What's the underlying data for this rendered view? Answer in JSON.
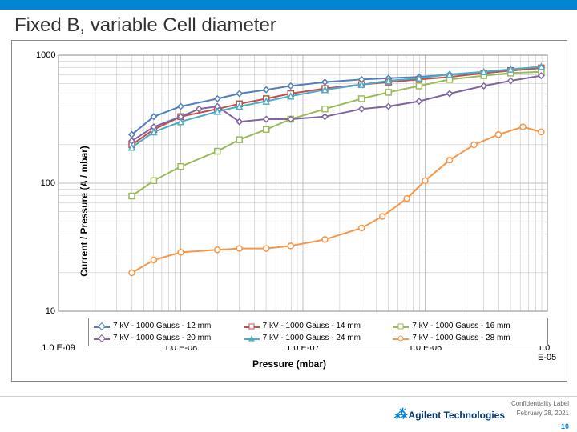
{
  "title": "Fixed B, variable Cell diameter",
  "chart": {
    "type": "line-scatter-loglog",
    "x_axis": {
      "label": "Pressure (mbar)",
      "min_exp": -9,
      "max_exp": -5,
      "ticks": [
        "1.0 E-09",
        "1.0 E-08",
        "1.0 E-07",
        "1.0 E-06",
        "1.0 E-05"
      ]
    },
    "y_axis": {
      "label": "Current / Pressure (A / mbar)",
      "min_exp": 1,
      "max_exp": 3,
      "ticks": [
        "10",
        "100",
        "1000"
      ]
    },
    "grid_color": "#bfbfbf",
    "plot_bg": "#ffffff",
    "series": [
      {
        "name": "7 kV - 1000 Gauss - 12 mm",
        "color": "#4f81bd",
        "marker": "diamond",
        "data": [
          [
            -8.4,
            2.38
          ],
          [
            -8.22,
            2.52
          ],
          [
            -8.0,
            2.6
          ],
          [
            -7.7,
            2.66
          ],
          [
            -7.52,
            2.7
          ],
          [
            -7.3,
            2.73
          ],
          [
            -7.1,
            2.76
          ],
          [
            -6.82,
            2.79
          ],
          [
            -6.52,
            2.81
          ],
          [
            -6.3,
            2.82
          ],
          [
            -6.05,
            2.83
          ],
          [
            -5.8,
            2.85
          ],
          [
            -5.52,
            2.86
          ],
          [
            -5.3,
            2.88
          ],
          [
            -5.05,
            2.9
          ]
        ]
      },
      {
        "name": "7 kV - 1000 Gauss - 14 mm",
        "color": "#c0504d",
        "marker": "square",
        "data": [
          [
            -8.4,
            2.3
          ],
          [
            -8.22,
            2.42
          ],
          [
            -8.0,
            2.52
          ],
          [
            -7.7,
            2.58
          ],
          [
            -7.52,
            2.62
          ],
          [
            -7.3,
            2.66
          ],
          [
            -7.1,
            2.7
          ],
          [
            -6.82,
            2.74
          ],
          [
            -6.52,
            2.77
          ],
          [
            -6.3,
            2.79
          ],
          [
            -6.05,
            2.81
          ],
          [
            -5.8,
            2.83
          ],
          [
            -5.52,
            2.86
          ],
          [
            -5.3,
            2.88
          ],
          [
            -5.05,
            2.9
          ]
        ]
      },
      {
        "name": "7 kV - 1000 Gauss - 16 mm",
        "color": "#9bbb59",
        "marker": "square",
        "data": [
          [
            -8.4,
            1.9
          ],
          [
            -8.22,
            2.02
          ],
          [
            -8.0,
            2.13
          ],
          [
            -7.7,
            2.25
          ],
          [
            -7.52,
            2.34
          ],
          [
            -7.3,
            2.42
          ],
          [
            -7.1,
            2.5
          ],
          [
            -6.82,
            2.58
          ],
          [
            -6.52,
            2.66
          ],
          [
            -6.3,
            2.71
          ],
          [
            -6.05,
            2.76
          ],
          [
            -5.8,
            2.81
          ],
          [
            -5.52,
            2.84
          ],
          [
            -5.3,
            2.86
          ],
          [
            -5.05,
            2.87
          ]
        ]
      },
      {
        "name": "7 kV - 1000 Gauss - 20 mm",
        "color": "#8064a2",
        "marker": "diamond",
        "data": [
          [
            -8.4,
            2.33
          ],
          [
            -8.22,
            2.44
          ],
          [
            -8.0,
            2.52
          ],
          [
            -7.85,
            2.58
          ],
          [
            -7.7,
            2.6
          ],
          [
            -7.52,
            2.48
          ],
          [
            -7.3,
            2.5
          ],
          [
            -7.1,
            2.5
          ],
          [
            -6.82,
            2.52
          ],
          [
            -6.52,
            2.58
          ],
          [
            -6.3,
            2.6
          ],
          [
            -6.05,
            2.64
          ],
          [
            -5.8,
            2.7
          ],
          [
            -5.52,
            2.76
          ],
          [
            -5.3,
            2.8
          ],
          [
            -5.05,
            2.84
          ]
        ]
      },
      {
        "name": "7 kV - 1000 Gauss - 24 mm",
        "color": "#4bacc6",
        "marker": "triangle",
        "data": [
          [
            -8.4,
            2.28
          ],
          [
            -8.22,
            2.4
          ],
          [
            -8.0,
            2.48
          ],
          [
            -7.7,
            2.56
          ],
          [
            -7.52,
            2.6
          ],
          [
            -7.3,
            2.64
          ],
          [
            -7.1,
            2.68
          ],
          [
            -6.82,
            2.73
          ],
          [
            -6.52,
            2.77
          ],
          [
            -6.3,
            2.8
          ],
          [
            -6.05,
            2.82
          ],
          [
            -5.8,
            2.85
          ],
          [
            -5.52,
            2.87
          ],
          [
            -5.3,
            2.89
          ],
          [
            -5.05,
            2.91
          ]
        ]
      },
      {
        "name": "7 kV - 1000 Gauss - 28 mm",
        "color": "#f79646",
        "marker": "circle",
        "data": [
          [
            -8.4,
            1.3
          ],
          [
            -8.22,
            1.4
          ],
          [
            -8.0,
            1.46
          ],
          [
            -7.7,
            1.48
          ],
          [
            -7.52,
            1.49
          ],
          [
            -7.3,
            1.49
          ],
          [
            -7.1,
            1.51
          ],
          [
            -6.82,
            1.56
          ],
          [
            -6.52,
            1.65
          ],
          [
            -6.35,
            1.74
          ],
          [
            -6.15,
            1.88
          ],
          [
            -6.0,
            2.02
          ],
          [
            -5.8,
            2.18
          ],
          [
            -5.6,
            2.3
          ],
          [
            -5.4,
            2.38
          ],
          [
            -5.2,
            2.44
          ],
          [
            -5.05,
            2.4
          ]
        ]
      }
    ],
    "marker_size": 7,
    "line_width": 2
  },
  "legend_order": [
    0,
    1,
    2,
    3,
    4,
    5
  ],
  "footer": {
    "confidentiality": "Confidentiality Label",
    "date": "February 28, 2021",
    "page": "10",
    "brand": "Agilent Technologies"
  }
}
